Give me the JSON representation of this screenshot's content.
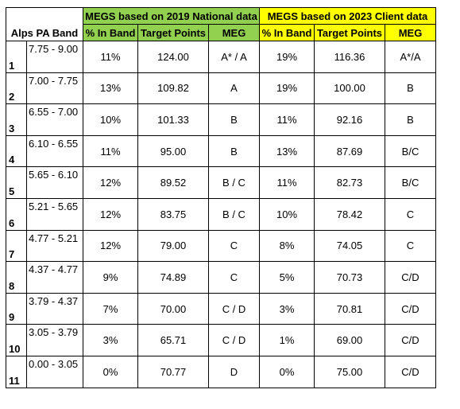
{
  "header": {
    "band_col": "Alps PA Band",
    "group_2019": "MEGS based on 2019 National data",
    "group_2023": "MEGS based on 2023 Client data",
    "sub": [
      "% In Band",
      "Target Points",
      "MEG",
      "% In Band",
      "Target Points",
      "MEG"
    ]
  },
  "colors": {
    "green": "#92d050",
    "yellow": "#ffff00"
  },
  "rows": [
    {
      "idx": "1",
      "range": "7.75 - 9.00",
      "pct19": "11%",
      "tp19": "124.00",
      "meg19": "A* / A",
      "pct23": "19%",
      "tp23": "116.36",
      "meg23": "A*/A"
    },
    {
      "idx": "2",
      "range": "7.00 - 7.75",
      "pct19": "13%",
      "tp19": "109.82",
      "meg19": "A",
      "pct23": "19%",
      "tp23": "100.00",
      "meg23": "B"
    },
    {
      "idx": "3",
      "range": "6.55 - 7.00",
      "pct19": "10%",
      "tp19": "101.33",
      "meg19": "B",
      "pct23": "11%",
      "tp23": "92.16",
      "meg23": "B"
    },
    {
      "idx": "4",
      "range": "6.10 - 6.55",
      "pct19": "11%",
      "tp19": "95.00",
      "meg19": "B",
      "pct23": "13%",
      "tp23": "87.69",
      "meg23": "B/C"
    },
    {
      "idx": "5",
      "range": "5.65 - 6.10",
      "pct19": "12%",
      "tp19": "89.52",
      "meg19": "B / C",
      "pct23": "11%",
      "tp23": "82.73",
      "meg23": "B/C"
    },
    {
      "idx": "6",
      "range": "5.21 - 5.65",
      "pct19": "12%",
      "tp19": "83.75",
      "meg19": "B / C",
      "pct23": "10%",
      "tp23": "78.42",
      "meg23": "C"
    },
    {
      "idx": "7",
      "range": "4.77 - 5.21",
      "pct19": "12%",
      "tp19": "79.00",
      "meg19": "C",
      "pct23": "8%",
      "tp23": "74.05",
      "meg23": "C"
    },
    {
      "idx": "8",
      "range": "4.37 - 4.77",
      "pct19": "9%",
      "tp19": "74.89",
      "meg19": "C",
      "pct23": "5%",
      "tp23": "70.73",
      "meg23": "C/D"
    },
    {
      "idx": "9",
      "range": "3.79 - 4.37",
      "pct19": "7%",
      "tp19": "70.00",
      "meg19": "C / D",
      "pct23": "3%",
      "tp23": "70.81",
      "meg23": "C/D"
    },
    {
      "idx": "10",
      "range": "3.05 - 3.79",
      "pct19": "3%",
      "tp19": "65.71",
      "meg19": "C / D",
      "pct23": "1%",
      "tp23": "69.00",
      "meg23": "C/D"
    },
    {
      "idx": "11",
      "range": "0.00 - 3.05",
      "pct19": "0%",
      "tp19": "70.77",
      "meg19": "D",
      "pct23": "0%",
      "tp23": "75.00",
      "meg23": "C/D"
    }
  ]
}
